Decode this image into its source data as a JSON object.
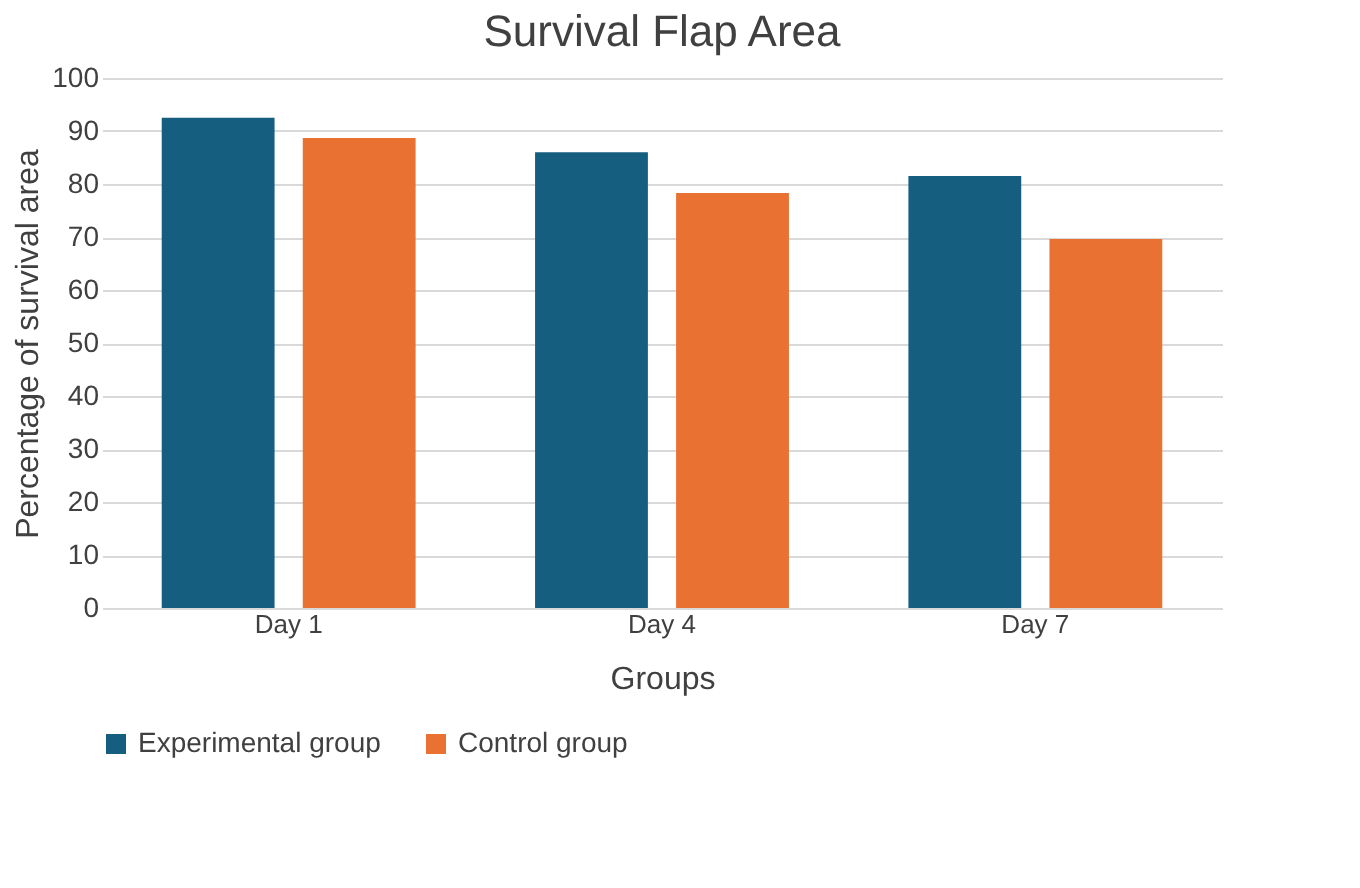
{
  "chart_data": {
    "type": "bar",
    "title": "Survival Flap Area",
    "xlabel": "Groups",
    "ylabel": "Percentage of survival area",
    "categories": [
      "Day 1",
      "Day 4",
      "Day 7"
    ],
    "series": [
      {
        "name": "Experimental group",
        "color": "#155e80",
        "values": [
          92.5,
          86,
          81.5
        ]
      },
      {
        "name": "Control group",
        "color": "#e97132",
        "values": [
          88.7,
          78.3,
          69.6
        ]
      }
    ],
    "ylim": [
      0,
      100
    ],
    "yticks": [
      0,
      10,
      20,
      30,
      40,
      50,
      60,
      70,
      80,
      90,
      100
    ],
    "grid": "y",
    "legend": "bottom"
  }
}
